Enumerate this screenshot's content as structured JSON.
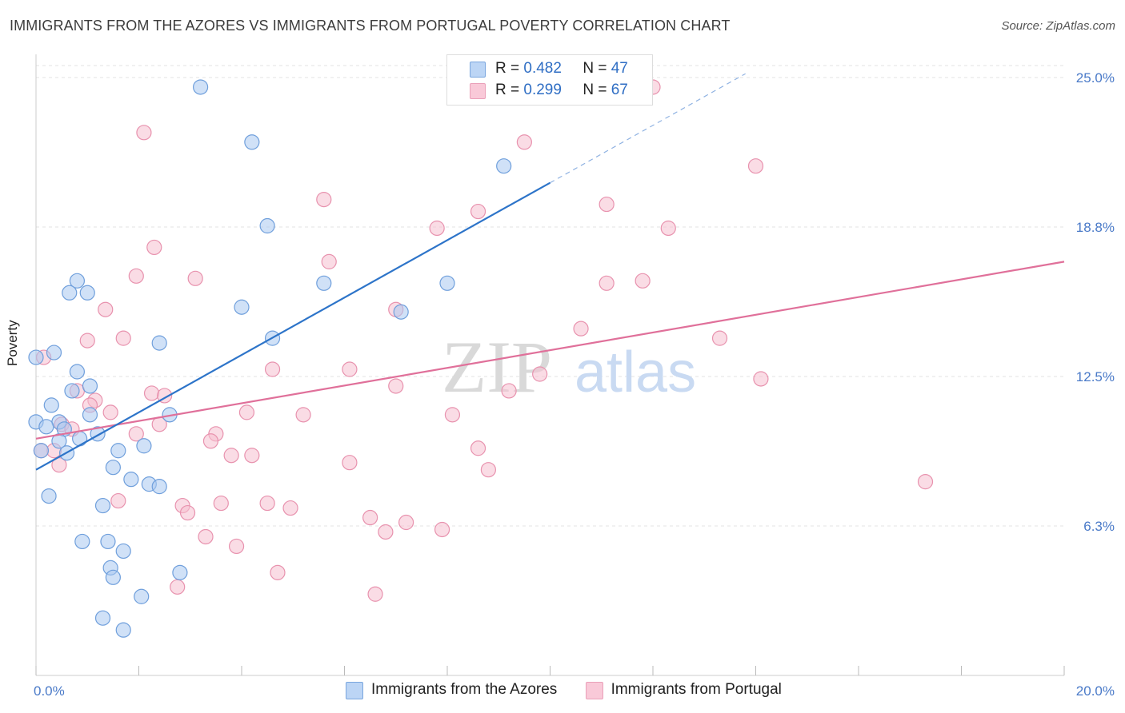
{
  "header": {
    "title": "IMMIGRANTS FROM THE AZORES VS IMMIGRANTS FROM PORTUGAL POVERTY CORRELATION CHART",
    "source": "Source: ZipAtlas.com"
  },
  "watermark": {
    "zip": "ZIP",
    "atlas": "atlas"
  },
  "legend_top": [
    {
      "r_label": "R =",
      "r_value": "0.482",
      "n_label": "N =",
      "n_value": "47"
    },
    {
      "r_label": "R =",
      "r_value": "0.299",
      "n_label": "N =",
      "n_value": "67"
    }
  ],
  "colors": {
    "azores_fill": "#a9c8f0",
    "azores_stroke": "#6f9fdc",
    "azores_line": "#2d74c9",
    "portugal_fill": "#f6bfd0",
    "portugal_stroke": "#e892ae",
    "portugal_line": "#e0709a",
    "grid": "#e3e3e3",
    "tick_label": "#4a7ac8"
  },
  "chart_data": {
    "type": "scatter",
    "xlabel": "",
    "ylabel": "Poverty",
    "xlim": [
      0,
      20
    ],
    "ylim": [
      0,
      25
    ],
    "y_ticks": [
      {
        "value": 6.25,
        "label": "6.3%"
      },
      {
        "value": 12.5,
        "label": "12.5%"
      },
      {
        "value": 18.75,
        "label": "18.8%"
      },
      {
        "value": 25,
        "label": "25.0%"
      }
    ],
    "x_tick_labels": [
      {
        "value": 0,
        "label": "0.0%"
      },
      {
        "value": 20,
        "label": "20.0%"
      }
    ],
    "grid": true,
    "legend_position": "bottom",
    "series": [
      {
        "name": "Immigrants from the Azores",
        "trend": {
          "x0": 0,
          "y0": 8.6,
          "x1": 10,
          "y1": 20.6,
          "dashed_to_x": 13.8
        },
        "points": [
          [
            3.2,
            24.6
          ],
          [
            4.2,
            22.3
          ],
          [
            9.1,
            21.3
          ],
          [
            4.5,
            18.8
          ],
          [
            0.8,
            16.5
          ],
          [
            0.65,
            16.0
          ],
          [
            1.0,
            16.0
          ],
          [
            5.6,
            16.4
          ],
          [
            8.0,
            16.4
          ],
          [
            4.0,
            15.4
          ],
          [
            7.1,
            15.2
          ],
          [
            2.4,
            13.9
          ],
          [
            4.6,
            14.1
          ],
          [
            0.35,
            13.5
          ],
          [
            0.0,
            13.3
          ],
          [
            0.8,
            12.7
          ],
          [
            1.05,
            12.1
          ],
          [
            0.7,
            11.9
          ],
          [
            0.3,
            11.3
          ],
          [
            0.0,
            10.6
          ],
          [
            0.45,
            10.6
          ],
          [
            0.2,
            10.4
          ],
          [
            0.55,
            10.3
          ],
          [
            1.05,
            10.9
          ],
          [
            2.6,
            10.9
          ],
          [
            0.45,
            9.8
          ],
          [
            0.85,
            9.9
          ],
          [
            1.2,
            10.1
          ],
          [
            0.1,
            9.4
          ],
          [
            0.6,
            9.3
          ],
          [
            1.6,
            9.4
          ],
          [
            2.1,
            9.6
          ],
          [
            1.5,
            8.7
          ],
          [
            1.85,
            8.2
          ],
          [
            2.2,
            8.0
          ],
          [
            2.4,
            7.9
          ],
          [
            0.25,
            7.5
          ],
          [
            1.3,
            7.1
          ],
          [
            0.9,
            5.6
          ],
          [
            1.4,
            5.6
          ],
          [
            1.7,
            5.2
          ],
          [
            1.45,
            4.5
          ],
          [
            1.5,
            4.1
          ],
          [
            2.8,
            4.3
          ],
          [
            2.05,
            3.3
          ],
          [
            1.3,
            2.4
          ],
          [
            1.7,
            1.9
          ]
        ]
      },
      {
        "name": "Immigrants from Portugal",
        "trend": {
          "x0": 0,
          "y0": 9.9,
          "x1": 20,
          "y1": 17.3
        },
        "points": [
          [
            2.1,
            22.7
          ],
          [
            9.5,
            22.3
          ],
          [
            14.0,
            21.3
          ],
          [
            5.6,
            19.9
          ],
          [
            11.1,
            19.7
          ],
          [
            8.6,
            19.4
          ],
          [
            7.8,
            18.7
          ],
          [
            12.3,
            18.7
          ],
          [
            2.3,
            17.9
          ],
          [
            5.7,
            17.3
          ],
          [
            1.95,
            16.7
          ],
          [
            3.1,
            16.6
          ],
          [
            11.1,
            16.4
          ],
          [
            11.8,
            16.5
          ],
          [
            1.35,
            15.3
          ],
          [
            10.6,
            14.5
          ],
          [
            1.0,
            14.0
          ],
          [
            1.7,
            14.1
          ],
          [
            13.3,
            14.1
          ],
          [
            4.6,
            12.8
          ],
          [
            6.1,
            12.8
          ],
          [
            9.8,
            12.6
          ],
          [
            14.1,
            12.4
          ],
          [
            7.0,
            12.1
          ],
          [
            9.2,
            11.9
          ],
          [
            0.8,
            11.9
          ],
          [
            1.15,
            11.5
          ],
          [
            2.25,
            11.8
          ],
          [
            2.5,
            11.7
          ],
          [
            1.05,
            11.3
          ],
          [
            1.45,
            11.0
          ],
          [
            4.1,
            11.0
          ],
          [
            5.2,
            10.9
          ],
          [
            8.1,
            10.9
          ],
          [
            0.5,
            10.5
          ],
          [
            0.7,
            10.3
          ],
          [
            1.95,
            10.1
          ],
          [
            2.4,
            10.5
          ],
          [
            3.5,
            10.1
          ],
          [
            3.4,
            9.8
          ],
          [
            8.6,
            9.5
          ],
          [
            3.8,
            9.2
          ],
          [
            4.2,
            9.2
          ],
          [
            6.1,
            8.9
          ],
          [
            8.8,
            8.6
          ],
          [
            17.3,
            8.1
          ],
          [
            0.35,
            9.4
          ],
          [
            0.45,
            8.8
          ],
          [
            1.6,
            7.3
          ],
          [
            2.85,
            7.1
          ],
          [
            2.95,
            6.8
          ],
          [
            3.6,
            7.2
          ],
          [
            4.5,
            7.2
          ],
          [
            4.95,
            7.0
          ],
          [
            6.5,
            6.6
          ],
          [
            6.8,
            6.0
          ],
          [
            7.2,
            6.4
          ],
          [
            7.9,
            6.1
          ],
          [
            3.3,
            5.8
          ],
          [
            3.9,
            5.4
          ],
          [
            4.7,
            4.3
          ],
          [
            2.75,
            3.7
          ],
          [
            6.6,
            3.4
          ],
          [
            0.1,
            9.4
          ],
          [
            0.15,
            13.3
          ],
          [
            12.0,
            24.6
          ],
          [
            7.0,
            15.3
          ]
        ]
      }
    ]
  }
}
